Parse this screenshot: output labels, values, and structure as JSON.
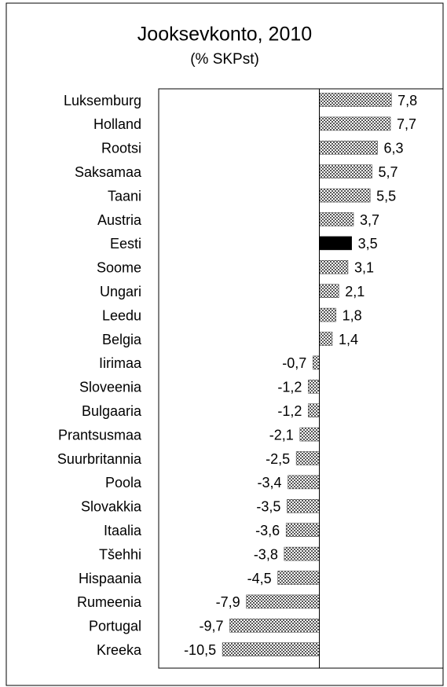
{
  "chart_data": {
    "type": "bar",
    "orientation": "horizontal",
    "title": "Jooksevkonto, 2010",
    "subtitle": "(% SKPst)",
    "categories": [
      "Luksemburg",
      "Holland",
      "Rootsi",
      "Saksamaa",
      "Taani",
      "Austria",
      "Eesti",
      "Soome",
      "Ungari",
      "Leedu",
      "Belgia",
      "Iirimaa",
      "Sloveenia",
      "Bulgaaria",
      "Prantsusmaa",
      "Suurbritannia",
      "Poola",
      "Slovakkia",
      "Itaalia",
      "Tšehhi",
      "Hispaania",
      "Rumeenia",
      "Portugal",
      "Kreeka"
    ],
    "values": [
      7.8,
      7.7,
      6.3,
      5.7,
      5.5,
      3.7,
      3.5,
      3.1,
      2.1,
      1.8,
      1.4,
      -0.7,
      -1.2,
      -1.2,
      -2.1,
      -2.5,
      -3.4,
      -3.5,
      -3.6,
      -3.8,
      -4.5,
      -7.9,
      -9.7,
      -10.5
    ],
    "value_labels": [
      "7,8",
      "7,7",
      "6,3",
      "5,7",
      "5,5",
      "3,7",
      "3,5",
      "3,1",
      "2,1",
      "1,8",
      "1,4",
      "-0,7",
      "-1,2",
      "-1,2",
      "-2,1",
      "-2,5",
      "-3,4",
      "-3,5",
      "-3,6",
      "-3,8",
      "-4,5",
      "-7,9",
      "-9,7",
      "-10,5"
    ],
    "color": "#555555",
    "pattern": "checker",
    "highlight_index": 6,
    "highlight_color": "#000000",
    "xlim": [
      -17.4,
      13.4
    ]
  }
}
